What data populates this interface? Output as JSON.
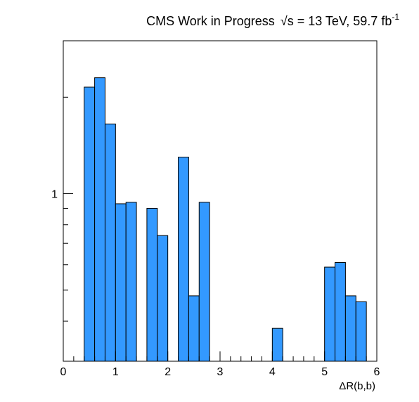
{
  "chart_data": {
    "type": "bar",
    "title_text": "CMS Work in Progress",
    "title_sqrt": "√s",
    "title_energy": " = 13 TeV, 59.7 fb",
    "title_superscript": "-1",
    "xlabel": "ΔR(b,b)",
    "ylabel": "",
    "xlim": [
      0,
      6
    ],
    "ylim": [
      0.3,
      3.0
    ],
    "yscale": "log",
    "bin_width": 0.2,
    "bins_x": [
      0.4,
      0.6,
      0.8,
      1.0,
      1.2,
      1.6,
      1.8,
      2.2,
      2.4,
      2.6,
      4.0,
      5.0,
      5.2,
      5.4,
      5.6
    ],
    "values": [
      2.15,
      2.3,
      1.65,
      0.93,
      0.94,
      0.9,
      0.74,
      1.3,
      0.48,
      0.94,
      0.38,
      0.59,
      0.61,
      0.48,
      0.46
    ],
    "x_ticks": [
      "0",
      "1",
      "2",
      "3",
      "4",
      "5",
      "6"
    ],
    "y_ticks": [
      "1"
    ],
    "bar_color": "#3399ff",
    "grid": false,
    "legend": "none"
  }
}
